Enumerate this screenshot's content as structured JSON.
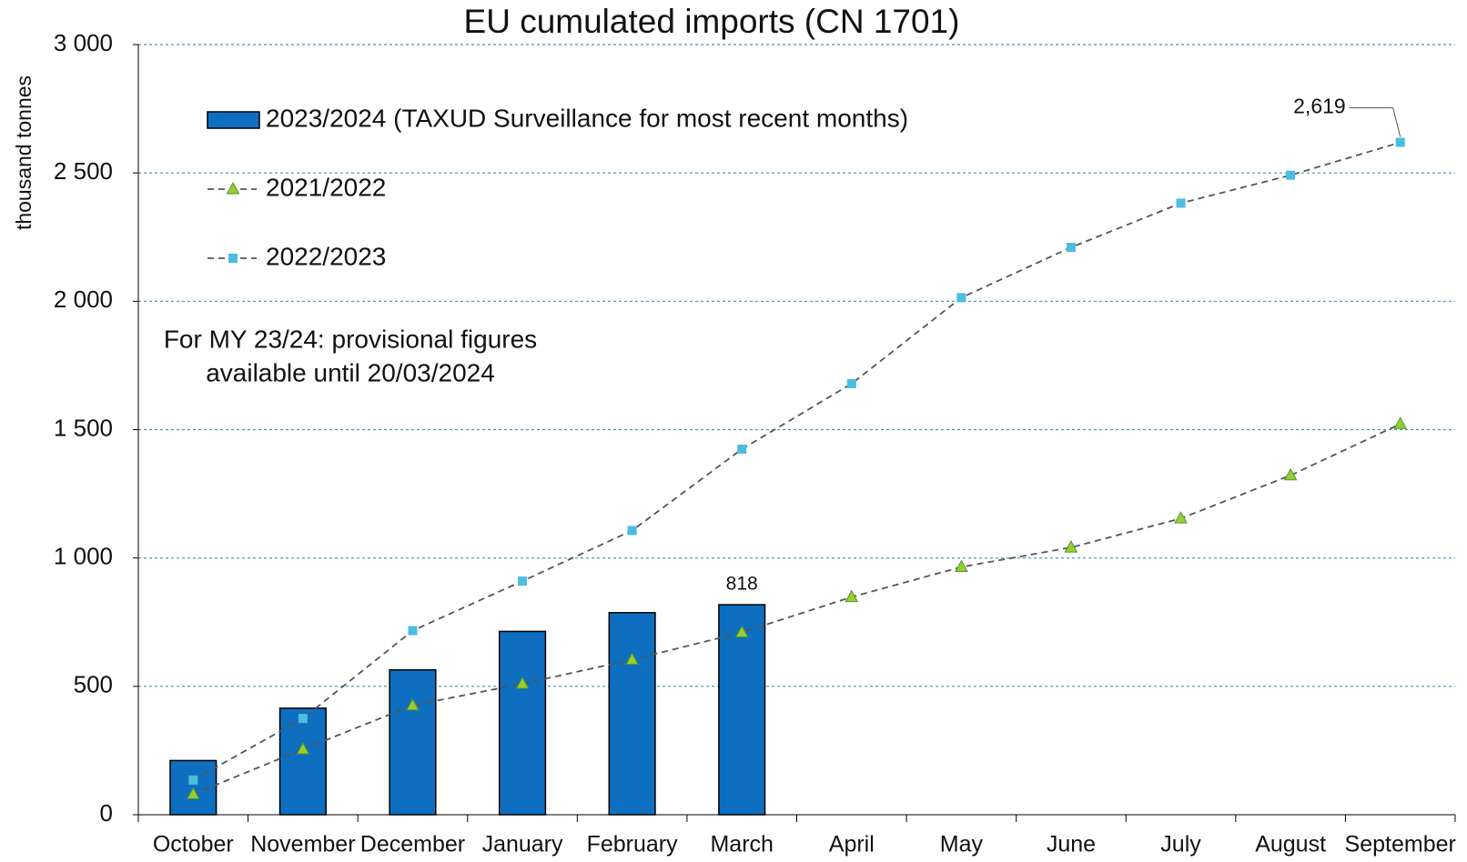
{
  "chart_data": {
    "type": "bar_line",
    "title": "EU cumulated imports (CN 1701)",
    "y_axis_label": "thousand tonnes",
    "annotation": [
      "For MY 23/24: provisional figures",
      "available until 20/03/2024"
    ],
    "categories": [
      "October",
      "November",
      "December",
      "January",
      "February",
      "March",
      "April",
      "May",
      "June",
      "July",
      "August",
      "September"
    ],
    "ylim": [
      0,
      3000
    ],
    "yticks": [
      0,
      500,
      {
        "value": 1000,
        "label": "1 000"
      },
      {
        "value": 1500,
        "label": "1 500"
      },
      {
        "value": 2000,
        "label": "2 000"
      },
      {
        "value": 2500,
        "label": "2 500"
      },
      {
        "value": 3000,
        "label": "3 000"
      }
    ],
    "grid": true,
    "series": [
      {
        "name": "2023/2024 (TAXUD Surveillance for most recent months)",
        "kind": "bar",
        "color": "#0e6fc1",
        "values": [
          211,
          415,
          564,
          714,
          787,
          818,
          null,
          null,
          null,
          null,
          null,
          null
        ],
        "value_labels": [
          null,
          null,
          null,
          null,
          null,
          "818",
          null,
          null,
          null,
          null,
          null,
          null
        ]
      },
      {
        "name": "2021/2022",
        "kind": "line",
        "marker": "triangle",
        "color": "#9acd32",
        "values": [
          80,
          255,
          426,
          510,
          604,
          710,
          848,
          965,
          1041,
          1154,
          1322,
          1522
        ]
      },
      {
        "name": "2022/2023",
        "kind": "line",
        "marker": "square",
        "color": "#4bbde0",
        "values": [
          135,
          375,
          717,
          910,
          1107,
          1424,
          1679,
          2014,
          2210,
          2382,
          2491,
          2619
        ],
        "value_labels": [
          null,
          null,
          null,
          null,
          null,
          null,
          null,
          null,
          null,
          null,
          null,
          "2,619"
        ]
      }
    ]
  }
}
